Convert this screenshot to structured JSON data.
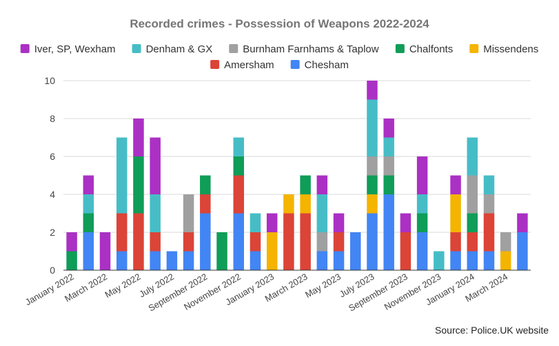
{
  "chart_data": {
    "type": "bar",
    "stacked": true,
    "title": "Recorded crimes - Possession of Weapons 2022-2024",
    "source": "Source: Police.UK website",
    "ylim": [
      0,
      10
    ],
    "yticks": [
      0,
      2,
      4,
      6,
      8,
      10
    ],
    "grid": true,
    "legend_position": "top",
    "categories": [
      "January 2022",
      "February 2022",
      "March 2022",
      "April 2022",
      "May 2022",
      "June 2022",
      "July 2022",
      "August 2022",
      "September 2022",
      "October 2022",
      "November 2022",
      "December 2022",
      "January 2023",
      "February 2023",
      "March 2023",
      "April 2023",
      "May 2023",
      "June 2023",
      "July 2023",
      "August 2023",
      "September 2023",
      "October 2023",
      "November 2023",
      "December 2023",
      "January 2024",
      "February 2024",
      "March 2024",
      "April 2024"
    ],
    "visible_tick_labels": [
      "January 2022",
      "March 2022",
      "May 2022",
      "July 2022",
      "September 2022",
      "November 2022",
      "January 2023",
      "March 2023",
      "May 2023",
      "July 2023",
      "September 2023",
      "November 2023",
      "January 2024",
      "March 2024"
    ],
    "series": [
      {
        "name": "Chesham",
        "color": "#4285f4",
        "values": [
          0,
          2,
          0,
          1,
          0,
          1,
          1,
          1,
          3,
          0,
          3,
          1,
          0,
          0,
          0,
          1,
          1,
          2,
          3,
          4,
          0,
          2,
          0,
          1,
          1,
          1,
          0,
          2
        ]
      },
      {
        "name": "Amersham",
        "color": "#db4437",
        "values": [
          0,
          0,
          0,
          2,
          3,
          1,
          0,
          1,
          1,
          0,
          2,
          1,
          0,
          3,
          3,
          0,
          1,
          0,
          0,
          0,
          2,
          0,
          0,
          1,
          1,
          2,
          0,
          0
        ]
      },
      {
        "name": "Missendens",
        "color": "#f4b400",
        "values": [
          0,
          0,
          0,
          0,
          0,
          0,
          0,
          0,
          0,
          0,
          0,
          0,
          2,
          1,
          1,
          0,
          0,
          0,
          1,
          0,
          0,
          0,
          0,
          2,
          0,
          0,
          1,
          0
        ]
      },
      {
        "name": "Chalfonts",
        "color": "#0f9d58",
        "values": [
          1,
          1,
          0,
          0,
          3,
          0,
          0,
          0,
          1,
          2,
          1,
          0,
          0,
          0,
          1,
          0,
          0,
          0,
          1,
          1,
          0,
          1,
          0,
          0,
          1,
          0,
          0,
          0
        ]
      },
      {
        "name": "Burnham Farnhams & Taplow",
        "color": "#a0a0a0",
        "values": [
          0,
          0,
          0,
          0,
          0,
          0,
          0,
          2,
          0,
          0,
          0,
          0,
          0,
          0,
          0,
          1,
          0,
          0,
          1,
          1,
          0,
          0,
          0,
          0,
          2,
          1,
          1,
          0
        ]
      },
      {
        "name": "Denham & GX",
        "color": "#46bdc6",
        "values": [
          0,
          1,
          0,
          4,
          0,
          2,
          0,
          0,
          0,
          0,
          1,
          1,
          0,
          0,
          0,
          2,
          0,
          0,
          3,
          1,
          0,
          1,
          1,
          0,
          2,
          1,
          0,
          0
        ]
      },
      {
        "name": "Iver, SP, Wexham",
        "color": "#ab30c4",
        "values": [
          1,
          1,
          2,
          0,
          2,
          3,
          0,
          0,
          0,
          0,
          0,
          0,
          1,
          0,
          0,
          1,
          1,
          0,
          1,
          1,
          1,
          2,
          0,
          1,
          0,
          0,
          0,
          1
        ]
      }
    ]
  }
}
